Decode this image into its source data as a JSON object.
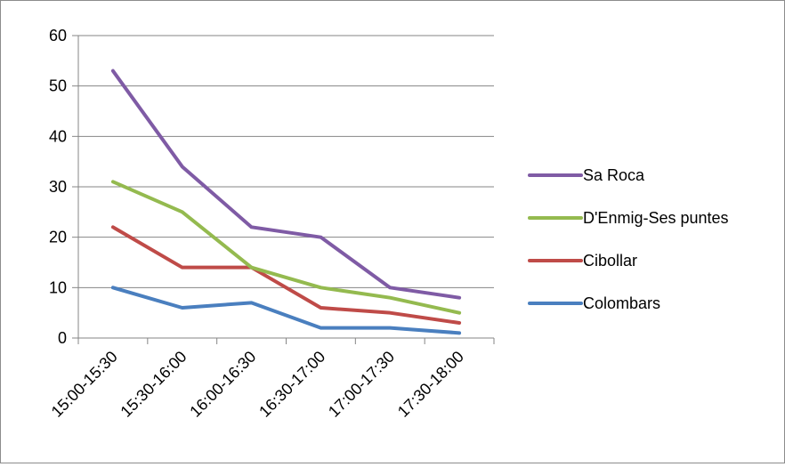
{
  "chart_data": {
    "type": "line",
    "categories": [
      "15:00-15:30",
      "15:30-16:00",
      "16:00-16:30",
      "16:30-17:00",
      "17:00-17:30",
      "17:30-18:00"
    ],
    "series": [
      {
        "name": "Sa Roca",
        "color": "#7f5ba5",
        "values": [
          53,
          34,
          22,
          20,
          10,
          8
        ]
      },
      {
        "name": "D'Enmig-Ses puntes",
        "color": "#94ba4f",
        "values": [
          31,
          25,
          14,
          10,
          8,
          5
        ]
      },
      {
        "name": "Cibollar",
        "color": "#bf4b48",
        "values": [
          22,
          14,
          14,
          6,
          5,
          3
        ]
      },
      {
        "name": "Colombars",
        "color": "#4a7fbf",
        "values": [
          10,
          6,
          7,
          2,
          2,
          1
        ]
      }
    ],
    "ylim": [
      0,
      60
    ],
    "yticks": [
      0,
      10,
      20,
      30,
      40,
      50,
      60
    ],
    "ytick_labels": [
      "0",
      "10",
      "20",
      "30",
      "40",
      "50",
      "60"
    ],
    "grid": true,
    "legend_position": "right",
    "title": "",
    "xlabel": "",
    "ylabel": ""
  }
}
